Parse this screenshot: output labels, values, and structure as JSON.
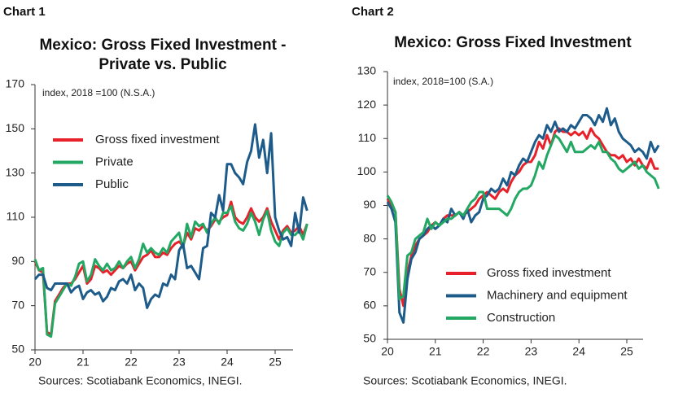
{
  "chart_data": [
    {
      "type": "line",
      "panel_label": "Chart 1",
      "title": "Mexico: Gross Fixed Investment - Private vs. Public",
      "annotation": "index, 2018 =100 (N.S.A.)",
      "source": "Sources: Scotiabank Economics, INEGI.",
      "categories": [
        "20",
        null,
        null,
        null,
        null,
        null,
        null,
        null,
        null,
        null,
        null,
        null,
        "21",
        null,
        null,
        null,
        null,
        null,
        null,
        null,
        null,
        null,
        null,
        null,
        "22",
        null,
        null,
        null,
        null,
        null,
        null,
        null,
        null,
        null,
        null,
        null,
        "23",
        null,
        null,
        null,
        null,
        null,
        null,
        null,
        null,
        null,
        null,
        null,
        "24",
        null,
        null,
        null,
        null,
        null,
        null,
        null,
        null,
        null,
        null,
        null,
        "25",
        null,
        null,
        null,
        null,
        null,
        null,
        null,
        null
      ],
      "ylim": [
        50,
        170
      ],
      "yticks": [
        50,
        70,
        90,
        110,
        130,
        150,
        170
      ],
      "grid": false,
      "series": [
        {
          "name": "Gross fixed investment",
          "color": "#e8202a",
          "values": [
            90,
            86,
            85,
            58,
            57,
            72,
            75,
            78,
            80,
            80,
            82,
            85,
            88,
            80,
            82,
            88,
            87,
            85,
            86,
            84,
            86,
            88,
            87,
            89,
            90,
            86,
            89,
            92,
            93,
            95,
            92,
            92,
            94,
            93,
            96,
            98,
            99,
            97,
            103,
            100,
            105,
            104,
            106,
            104,
            106,
            109,
            108,
            110,
            111,
            117,
            110,
            108,
            107,
            110,
            114,
            110,
            108,
            110,
            114,
            108,
            104,
            100,
            104,
            106,
            103,
            104,
            106,
            102,
            107
          ]
        },
        {
          "name": "Private",
          "color": "#22a862",
          "values": [
            91,
            86,
            87,
            57,
            56,
            71,
            74,
            77,
            80,
            79,
            83,
            89,
            90,
            81,
            84,
            91,
            88,
            86,
            89,
            86,
            87,
            90,
            87,
            90,
            92,
            87,
            91,
            98,
            94,
            96,
            94,
            93,
            96,
            94,
            99,
            101,
            103,
            96,
            107,
            101,
            108,
            106,
            107,
            103,
            107,
            110,
            107,
            112,
            112,
            115,
            108,
            105,
            104,
            107,
            112,
            108,
            102,
            109,
            113,
            104,
            99,
            97,
            103,
            105,
            102,
            102,
            104,
            100,
            107
          ]
        },
        {
          "name": "Public",
          "color": "#1d5c8a",
          "values": [
            82,
            84,
            84,
            78,
            77,
            80,
            80,
            80,
            80,
            76,
            78,
            79,
            73,
            76,
            77,
            75,
            76,
            72,
            74,
            78,
            77,
            81,
            82,
            80,
            84,
            77,
            80,
            78,
            69,
            73,
            75,
            74,
            80,
            79,
            84,
            82,
            95,
            98,
            87,
            88,
            85,
            82,
            96,
            97,
            112,
            110,
            120,
            113,
            134,
            134,
            130,
            128,
            125,
            135,
            140,
            152,
            137,
            145,
            130,
            148,
            110,
            104,
            100,
            101,
            97,
            112,
            103,
            119,
            113
          ]
        }
      ]
    },
    {
      "type": "line",
      "panel_label": "Chart 2",
      "title": "Mexico: Gross Fixed Investment",
      "annotation": "index, 2018=100 (S.A.)",
      "source": "Sources: Scotiabank Economics, INEGI.",
      "categories": [
        "20",
        null,
        null,
        null,
        null,
        null,
        null,
        null,
        null,
        null,
        null,
        null,
        "21",
        null,
        null,
        null,
        null,
        null,
        null,
        null,
        null,
        null,
        null,
        null,
        "22",
        null,
        null,
        null,
        null,
        null,
        null,
        null,
        null,
        null,
        null,
        null,
        "23",
        null,
        null,
        null,
        null,
        null,
        null,
        null,
        null,
        null,
        null,
        null,
        "24",
        null,
        null,
        null,
        null,
        null,
        null,
        null,
        null,
        null,
        null,
        null,
        "25",
        null,
        null,
        null,
        null,
        null,
        null,
        null,
        null
      ],
      "ylim": [
        50,
        130
      ],
      "yticks": [
        50,
        60,
        70,
        80,
        90,
        100,
        110,
        120,
        130
      ],
      "grid": false,
      "series": [
        {
          "name": "Gross fixed investment",
          "color": "#e8202a",
          "values": [
            92,
            90,
            88,
            65,
            60,
            70,
            75,
            78,
            80,
            81,
            82,
            84,
            85,
            84,
            86,
            87,
            87,
            87,
            88,
            87,
            88,
            89,
            90,
            92,
            93,
            94,
            93,
            92,
            94,
            95,
            94,
            97,
            99,
            100,
            102,
            103,
            103,
            105,
            109,
            107,
            111,
            108,
            112,
            113,
            112,
            112,
            111,
            112,
            111,
            112,
            110,
            113,
            111,
            110,
            108,
            106,
            105,
            105,
            104,
            105,
            103,
            104,
            102,
            104,
            102,
            101,
            104,
            101,
            101
          ]
        },
        {
          "name": "Machinery and equipment",
          "color": "#1d5c8a",
          "values": [
            91,
            89,
            85,
            58,
            55,
            68,
            74,
            76,
            80,
            81,
            83,
            84,
            83,
            84,
            86,
            85,
            89,
            87,
            88,
            86,
            89,
            85,
            87,
            88,
            92,
            93,
            95,
            94,
            95,
            98,
            96,
            100,
            99,
            102,
            104,
            103,
            106,
            109,
            111,
            110,
            114,
            112,
            115,
            112,
            113,
            112,
            114,
            113,
            115,
            117,
            117,
            116,
            114,
            117,
            115,
            119,
            114,
            116,
            112,
            110,
            109,
            108,
            106,
            107,
            106,
            104,
            109,
            106,
            108
          ]
        },
        {
          "name": "Construction",
          "color": "#22a862",
          "values": [
            93,
            91,
            88,
            62,
            63,
            75,
            76,
            80,
            81,
            82,
            86,
            83,
            85,
            84,
            85,
            86,
            86,
            87,
            88,
            87,
            89,
            91,
            92,
            94,
            94,
            89,
            89,
            89,
            89,
            88,
            87,
            89,
            92,
            94,
            95,
            95,
            96,
            99,
            103,
            101,
            105,
            108,
            111,
            110,
            108,
            106,
            109,
            106,
            106,
            106,
            107,
            108,
            107,
            109,
            106,
            106,
            104,
            103,
            101,
            100,
            101,
            102,
            103,
            101,
            102,
            100,
            99,
            98,
            95
          ]
        }
      ]
    }
  ]
}
